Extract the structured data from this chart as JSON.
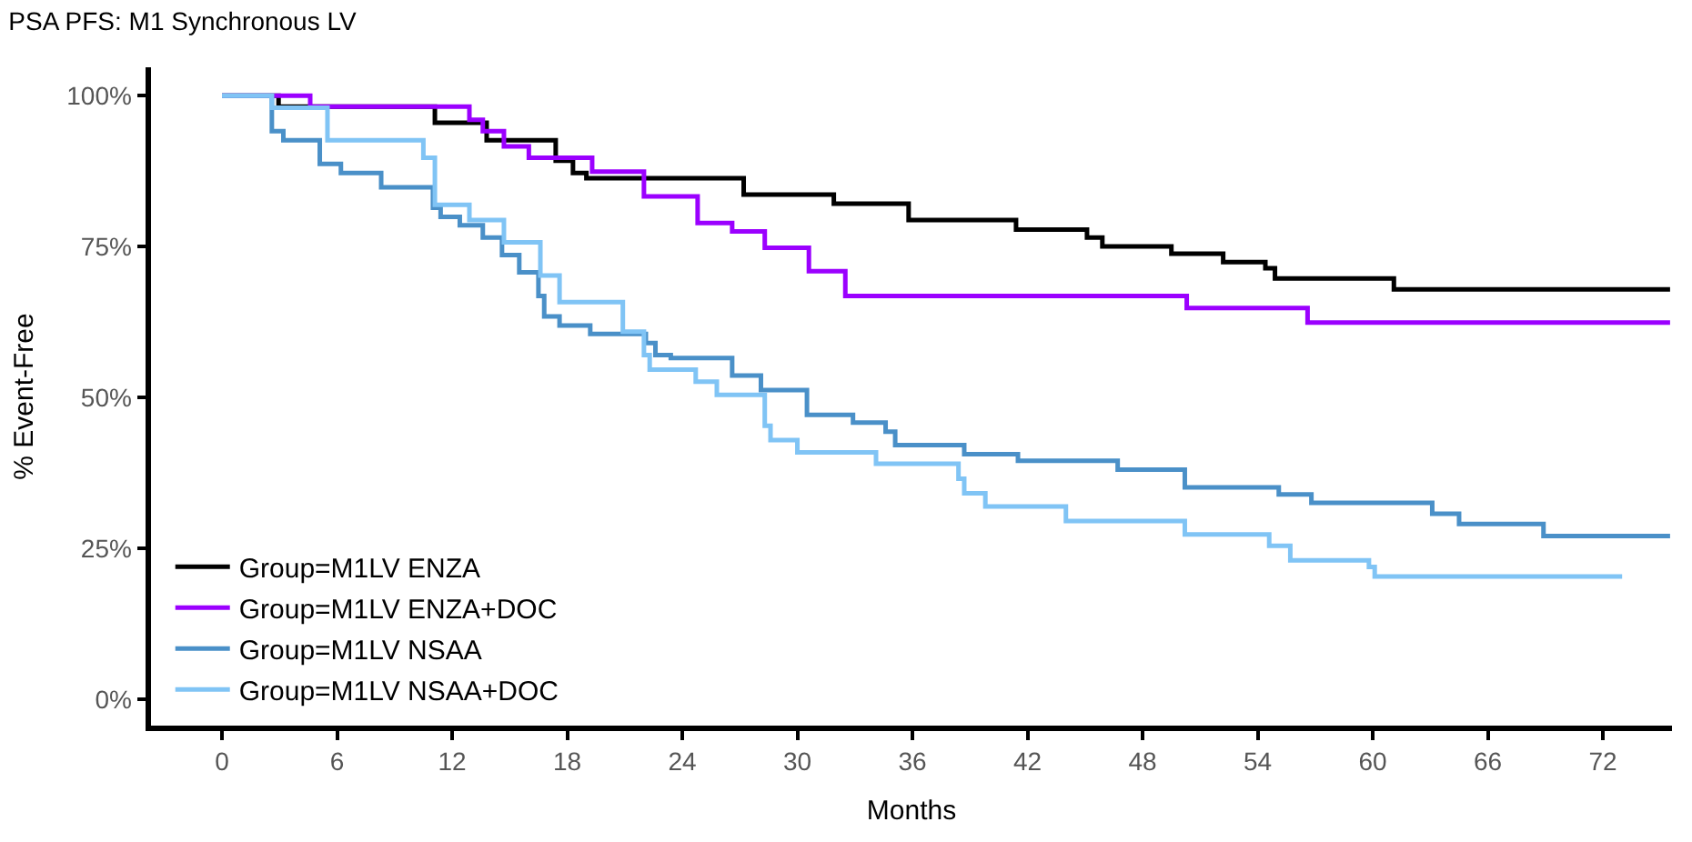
{
  "chart_data": {
    "type": "step",
    "title": "PSA PFS: M1 Synchronous LV",
    "xlabel": "Months",
    "ylabel": "% Event-Free",
    "xlim": [
      -3.7,
      75.6
    ],
    "xticks": [
      0,
      6,
      12,
      18,
      24,
      30,
      36,
      42,
      48,
      54,
      60,
      66,
      72
    ],
    "ylim": [
      -4.4,
      104.7
    ],
    "yticks": [
      {
        "value": 0,
        "label": "0%"
      },
      {
        "value": 25,
        "label": "25%"
      },
      {
        "value": 50,
        "label": "50%"
      },
      {
        "value": 75,
        "label": "75%"
      },
      {
        "value": 100,
        "label": "100%"
      }
    ],
    "legend": "bottom left",
    "marker": "none",
    "line_style": "solid",
    "series": [
      {
        "name": "Group=M1LV ENZA",
        "color": "#000000",
        "x": [
          0,
          2.95,
          11.1,
          13.8,
          17.4,
          18.3,
          19,
          27.2,
          31.9,
          35.8,
          41.4,
          45.1,
          45.9,
          49.5,
          52.2,
          54.4,
          54.9,
          61.1,
          75.5
        ],
        "values": [
          100,
          98.2,
          95.5,
          92.6,
          89.2,
          87.2,
          86.3,
          83.6,
          82.1,
          79.4,
          77.8,
          76.5,
          75.0,
          73.8,
          72.4,
          71.4,
          69.7,
          67.9,
          67.9
        ]
      },
      {
        "name": "Group=M1LV ENZA+DOC",
        "color": "#9b00ff",
        "x": [
          0,
          4.6,
          12.9,
          13.6,
          14.7,
          16.0,
          19.3,
          22.0,
          24.8,
          26.6,
          28.3,
          30.6,
          32.5,
          50.3,
          56.6,
          75.5
        ],
        "values": [
          100,
          98.2,
          96.0,
          94.1,
          91.6,
          89.7,
          87.4,
          83.3,
          78.9,
          77.5,
          74.8,
          70.9,
          66.8,
          64.8,
          62.4,
          62.4
        ]
      },
      {
        "name": "Group=M1LV NSAA",
        "color": "#4a90c8",
        "x": [
          0,
          2.6,
          3.2,
          5.1,
          6.2,
          8.3,
          11.0,
          11.4,
          12.4,
          13.6,
          14.6,
          15.5,
          16.5,
          16.8,
          17.6,
          19.2,
          22.1,
          22.6,
          23.4,
          26.6,
          28.1,
          30.5,
          32.9,
          34.6,
          35.1,
          38.7,
          41.5,
          46.7,
          50.2,
          55.1,
          56.8,
          63.1,
          64.5,
          68.9,
          75.5
        ],
        "values": [
          100,
          94.1,
          92.6,
          88.7,
          87.2,
          84.8,
          81.4,
          79.9,
          78.5,
          76.5,
          73.6,
          70.7,
          66.8,
          63.4,
          61.9,
          60.5,
          59.0,
          57.0,
          56.5,
          53.6,
          51.2,
          47.1,
          45.8,
          44.3,
          42.1,
          40.6,
          39.5,
          38.0,
          35.1,
          33.9,
          32.5,
          30.7,
          29.0,
          27.0,
          27.0
        ]
      },
      {
        "name": "Group=M1LV NSAA+DOC",
        "color": "#80c4f5",
        "x": [
          0,
          2.6,
          5.5,
          10.5,
          11.1,
          12.9,
          14.7,
          16.6,
          17.6,
          20.9,
          22.0,
          22.3,
          24.7,
          25.8,
          28.3,
          28.6,
          30.0,
          34.1,
          38.4,
          38.7,
          39.8,
          44.0,
          50.2,
          54.6,
          55.7,
          59.8,
          60.1,
          73.0
        ],
        "values": [
          100,
          98.0,
          92.6,
          89.7,
          81.9,
          79.4,
          75.7,
          70.2,
          65.8,
          60.9,
          57.0,
          54.6,
          52.6,
          50.4,
          45.3,
          42.9,
          40.9,
          39.0,
          36.5,
          34.1,
          31.9,
          29.5,
          27.3,
          25.4,
          23.0,
          21.9,
          20.3,
          20.3
        ]
      }
    ]
  }
}
